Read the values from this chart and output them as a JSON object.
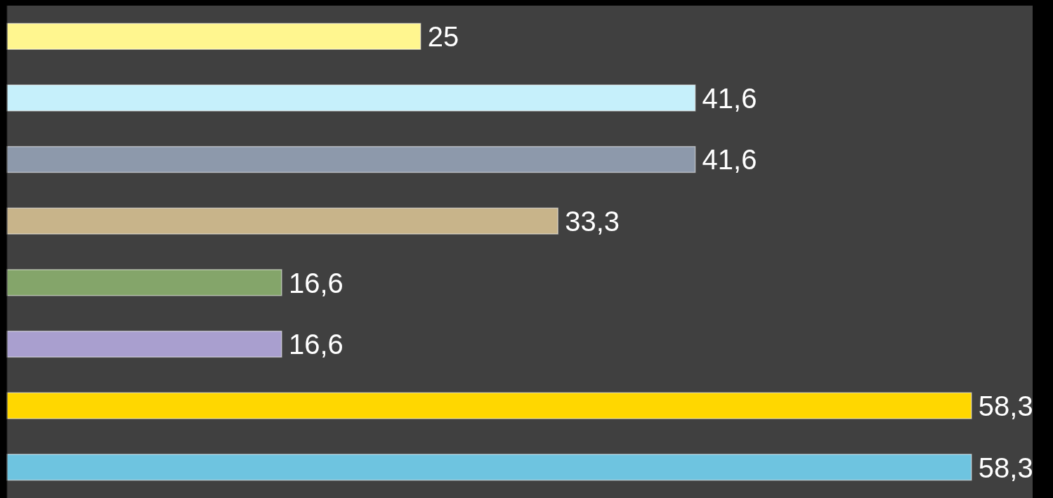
{
  "chart_data": {
    "type": "bar",
    "orientation": "horizontal",
    "categories": [
      null,
      null,
      null,
      null,
      null,
      null,
      null,
      null
    ],
    "values": [
      25,
      41.6,
      41.6,
      33.3,
      16.6,
      16.6,
      58.3,
      58.3
    ],
    "value_labels": [
      "25",
      "41,6",
      "41,6",
      "33,3",
      "16,6",
      "16,6",
      "58,3",
      "58,3"
    ],
    "colors": [
      "#fff68f",
      "#c6f0fb",
      "#8d99ab",
      "#c8b48a",
      "#84a56a",
      "#a99fcf",
      "#ffd700",
      "#6ec4e0"
    ],
    "xlim": [
      0,
      62
    ]
  }
}
